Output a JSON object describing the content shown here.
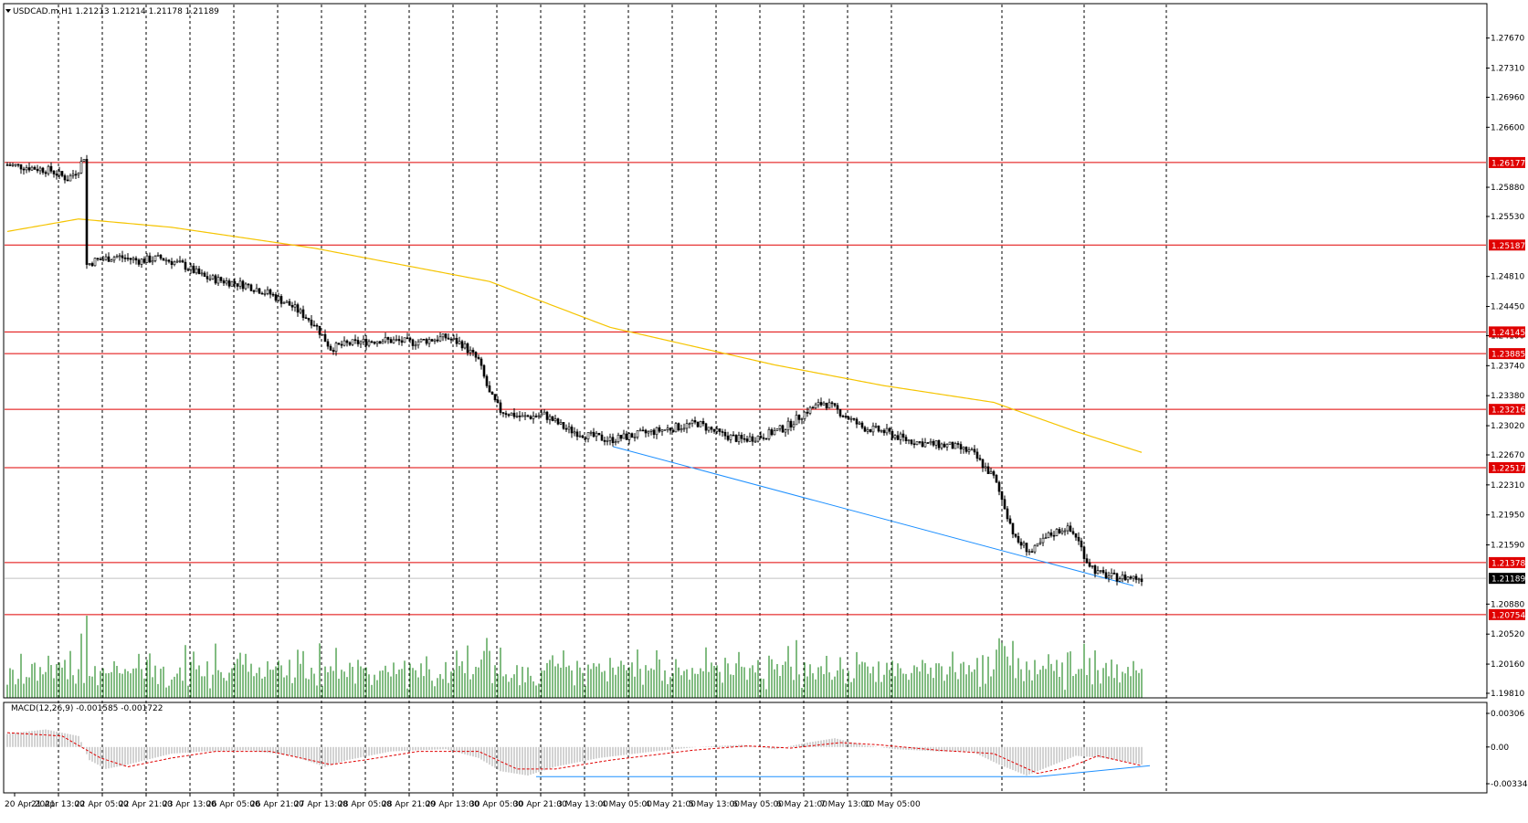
{
  "header": {
    "symbol_info": "USDCAD.m,H1  1.21213 1.21214 1.21178 1.21189"
  },
  "macd_header": "MACD(12,26,9) -0.001585 -0.001722",
  "colors": {
    "background": "#ffffff",
    "level_line": "#e00000",
    "ma_line": "#f5c400",
    "trend_line": "#1e90ff",
    "volume": "#2f8f2f",
    "macd_hist": "#c0c0c0",
    "macd_signal": "#e00000",
    "price_label_bg": "#e00000",
    "current_label_bg": "#000000"
  },
  "chart_data": [
    {
      "type": "candlestick",
      "title": "USDCAD.m,H1",
      "ylim": [
        1.1981,
        1.2805
      ],
      "y_ticks": [
        "1.27670",
        "1.27310",
        "1.26960",
        "1.26600",
        "1.25880",
        "1.25530",
        "1.24810",
        "1.24450",
        "1.24100",
        "1.23740",
        "1.23380",
        "1.23020",
        "1.22670",
        "1.22310",
        "1.21950",
        "1.21590",
        "1.20880",
        "1.20520",
        "1.20160",
        "1.19810"
      ],
      "levels": [
        "1.26177",
        "1.25187",
        "1.24145",
        "1.23885",
        "1.23216",
        "1.22517",
        "1.21378",
        "1.20754"
      ],
      "current_price": "1.21189",
      "x_labels": [
        "20 Apr 2021",
        "21 Apr 13:00",
        "22 Apr 05:00",
        "22 Apr 21:00",
        "23 Apr 13:00",
        "26 Apr 05:00",
        "26 Apr 21:00",
        "27 Apr 13:00",
        "28 Apr 05:00",
        "28 Apr 21:00",
        "29 Apr 13:00",
        "30 Apr 05:00",
        "30 Apr 21:00",
        "3 May 13:00",
        "4 May 05:00",
        "4 May 21:00",
        "5 May 13:00",
        "6 May 05:00",
        "6 May 21:00",
        "7 May 13:00",
        "10 May 05:00"
      ],
      "close_path": [
        [
          0,
          1.2615
        ],
        [
          8,
          1.2612
        ],
        [
          16,
          1.2608
        ],
        [
          22,
          1.2598
        ],
        [
          26,
          1.261
        ],
        [
          28,
          1.2625
        ],
        [
          29,
          1.2495
        ],
        [
          32,
          1.25
        ],
        [
          40,
          1.2505
        ],
        [
          48,
          1.25
        ],
        [
          56,
          1.2503
        ],
        [
          64,
          1.2495
        ],
        [
          72,
          1.248
        ],
        [
          80,
          1.2475
        ],
        [
          88,
          1.247
        ],
        [
          96,
          1.246
        ],
        [
          104,
          1.2445
        ],
        [
          112,
          1.2425
        ],
        [
          116,
          1.2405
        ],
        [
          118,
          1.2395
        ],
        [
          124,
          1.24
        ],
        [
          136,
          1.2405
        ],
        [
          148,
          1.2402
        ],
        [
          160,
          1.2408
        ],
        [
          166,
          1.24
        ],
        [
          172,
          1.238
        ],
        [
          176,
          1.234
        ],
        [
          180,
          1.232
        ],
        [
          188,
          1.2312
        ],
        [
          196,
          1.2315
        ],
        [
          204,
          1.2298
        ],
        [
          212,
          1.229
        ],
        [
          220,
          1.2285
        ],
        [
          228,
          1.229
        ],
        [
          236,
          1.2295
        ],
        [
          244,
          1.23
        ],
        [
          252,
          1.2305
        ],
        [
          260,
          1.2292
        ],
        [
          268,
          1.2285
        ],
        [
          276,
          1.229
        ],
        [
          284,
          1.23
        ],
        [
          292,
          1.232
        ],
        [
          298,
          1.233
        ],
        [
          304,
          1.2318
        ],
        [
          312,
          1.23
        ],
        [
          320,
          1.2295
        ],
        [
          328,
          1.2285
        ],
        [
          336,
          1.228
        ],
        [
          344,
          1.2278
        ],
        [
          352,
          1.227
        ],
        [
          360,
          1.224
        ],
        [
          364,
          1.2205
        ],
        [
          368,
          1.2165
        ],
        [
          374,
          1.215
        ],
        [
          380,
          1.217
        ],
        [
          386,
          1.218
        ],
        [
          390,
          1.217
        ],
        [
          394,
          1.214
        ],
        [
          398,
          1.2125
        ],
        [
          404,
          1.212
        ],
        [
          410,
          1.212
        ],
        [
          414,
          1.2119
        ]
      ],
      "n_candles": 415,
      "ma_path": [
        [
          0,
          1.2535
        ],
        [
          26,
          1.255
        ],
        [
          60,
          1.254
        ],
        [
          112,
          1.2515
        ],
        [
          176,
          1.2475
        ],
        [
          220,
          1.242
        ],
        [
          280,
          1.2375
        ],
        [
          320,
          1.235
        ],
        [
          360,
          1.233
        ],
        [
          390,
          1.2295
        ],
        [
          414,
          1.227
        ]
      ],
      "trend_line": [
        [
          221,
          1.2277
        ],
        [
          411,
          1.211
        ]
      ],
      "volume_ylim": [
        0,
        100
      ]
    },
    {
      "type": "bar",
      "title": "MACD(12,26,9)",
      "series": [
        {
          "name": "MACD",
          "values": "histogram"
        },
        {
          "name": "Signal",
          "values": "line"
        }
      ],
      "ylim": [
        -0.003344,
        0.00306
      ],
      "y_ticks": [
        "0.00306",
        "0.00",
        "-0.003344"
      ],
      "hist_path": [
        [
          0,
          0.0012
        ],
        [
          14,
          0.0016
        ],
        [
          26,
          0.001
        ],
        [
          30,
          -0.0012
        ],
        [
          36,
          -0.002
        ],
        [
          44,
          -0.0016
        ],
        [
          60,
          -0.0006
        ],
        [
          72,
          -0.0004
        ],
        [
          88,
          -0.0003
        ],
        [
          104,
          -0.0008
        ],
        [
          116,
          -0.0018
        ],
        [
          124,
          -0.0012
        ],
        [
          140,
          -0.0004
        ],
        [
          160,
          -0.0002
        ],
        [
          172,
          -0.001
        ],
        [
          180,
          -0.0022
        ],
        [
          190,
          -0.0026
        ],
        [
          200,
          -0.0018
        ],
        [
          216,
          -0.001
        ],
        [
          236,
          -0.0004
        ],
        [
          252,
          0.0
        ],
        [
          268,
          0.0002
        ],
        [
          280,
          -0.0002
        ],
        [
          292,
          0.0004
        ],
        [
          302,
          0.0008
        ],
        [
          312,
          0.0002
        ],
        [
          324,
          -0.0002
        ],
        [
          340,
          -0.0004
        ],
        [
          352,
          -0.0004
        ],
        [
          362,
          -0.0016
        ],
        [
          372,
          -0.0026
        ],
        [
          380,
          -0.0018
        ],
        [
          390,
          -0.0008
        ],
        [
          400,
          -0.001
        ],
        [
          414,
          -0.0016
        ]
      ],
      "signal_path": [
        [
          0,
          0.0013
        ],
        [
          20,
          0.001
        ],
        [
          34,
          -0.001
        ],
        [
          44,
          -0.0018
        ],
        [
          60,
          -0.001
        ],
        [
          76,
          -0.0004
        ],
        [
          96,
          -0.0004
        ],
        [
          118,
          -0.0016
        ],
        [
          130,
          -0.0012
        ],
        [
          150,
          -0.0004
        ],
        [
          172,
          -0.0004
        ],
        [
          186,
          -0.002
        ],
        [
          200,
          -0.002
        ],
        [
          220,
          -0.0012
        ],
        [
          250,
          -0.0003
        ],
        [
          270,
          0.0001
        ],
        [
          286,
          -0.0001
        ],
        [
          304,
          0.0004
        ],
        [
          318,
          0.0002
        ],
        [
          340,
          -0.0003
        ],
        [
          360,
          -0.0006
        ],
        [
          376,
          -0.0024
        ],
        [
          388,
          -0.0018
        ],
        [
          398,
          -0.0008
        ],
        [
          414,
          -0.0017
        ]
      ],
      "trend_lines": [
        [
          [
            193,
            -0.0027
          ],
          [
            276,
            -0.0027
          ],
          [
            376,
            -0.0027
          ]
        ],
        [
          [
            376,
            -0.0027
          ],
          [
            417,
            -0.0017
          ]
        ]
      ]
    }
  ]
}
